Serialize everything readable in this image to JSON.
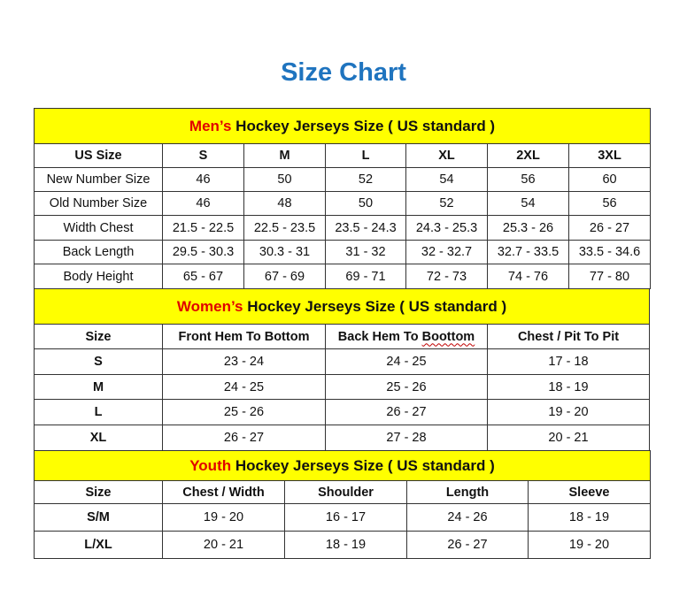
{
  "title": "Size Chart",
  "colors": {
    "band": "#ffff00",
    "accent": "#e00000",
    "title": "#1f74bf"
  },
  "men": {
    "band_accent": "Men’s",
    "band_rest": " Hockey Jerseys Size ( US standard )",
    "header": [
      "US Size",
      "S",
      "M",
      "L",
      "XL",
      "2XL",
      "3XL"
    ],
    "rows": [
      [
        "New Number Size",
        "46",
        "50",
        "52",
        "54",
        "56",
        "60"
      ],
      [
        "Old Number Size",
        "46",
        "48",
        "50",
        "52",
        "54",
        "56"
      ],
      [
        "Width Chest",
        "21.5 - 22.5",
        "22.5 - 23.5",
        "23.5 - 24.3",
        "24.3 - 25.3",
        "25.3 - 26",
        "26 - 27"
      ],
      [
        "Back Length",
        "29.5 - 30.3",
        "30.3 - 31",
        "31 - 32",
        "32 - 32.7",
        "32.7 - 33.5",
        "33.5 - 34.6"
      ],
      [
        "Body Height",
        "65 - 67",
        "67 - 69",
        "69 - 71",
        "72 - 73",
        "74 - 76",
        "77 - 80"
      ]
    ]
  },
  "women": {
    "band_accent": "Women’s",
    "band_rest": " Hockey Jerseys Size ( US standard )",
    "header": [
      "Size",
      "Front Hem To Bottom",
      "Back Hem To Boottom",
      "Chest / Pit To Pit"
    ],
    "rows": [
      [
        "S",
        "23 - 24",
        "24 - 25",
        "17 - 18"
      ],
      [
        "M",
        "24 - 25",
        "25 - 26",
        "18 - 19"
      ],
      [
        "L",
        "25 - 26",
        "26 - 27",
        "19 - 20"
      ],
      [
        "XL",
        "26 - 27",
        "27 - 28",
        "20 - 21"
      ]
    ]
  },
  "youth": {
    "band_accent": "Youth",
    "band_rest": " Hockey Jerseys Size ( US standard )",
    "header": [
      "Size",
      "Chest / Width",
      "Shoulder",
      "Length",
      "Sleeve"
    ],
    "rows": [
      [
        "S/M",
        "19 - 20",
        "16 - 17",
        "24 - 26",
        "18 - 19"
      ],
      [
        "L/XL",
        "20 - 21",
        "18 - 19",
        "26 - 27",
        "19 - 20"
      ]
    ]
  }
}
